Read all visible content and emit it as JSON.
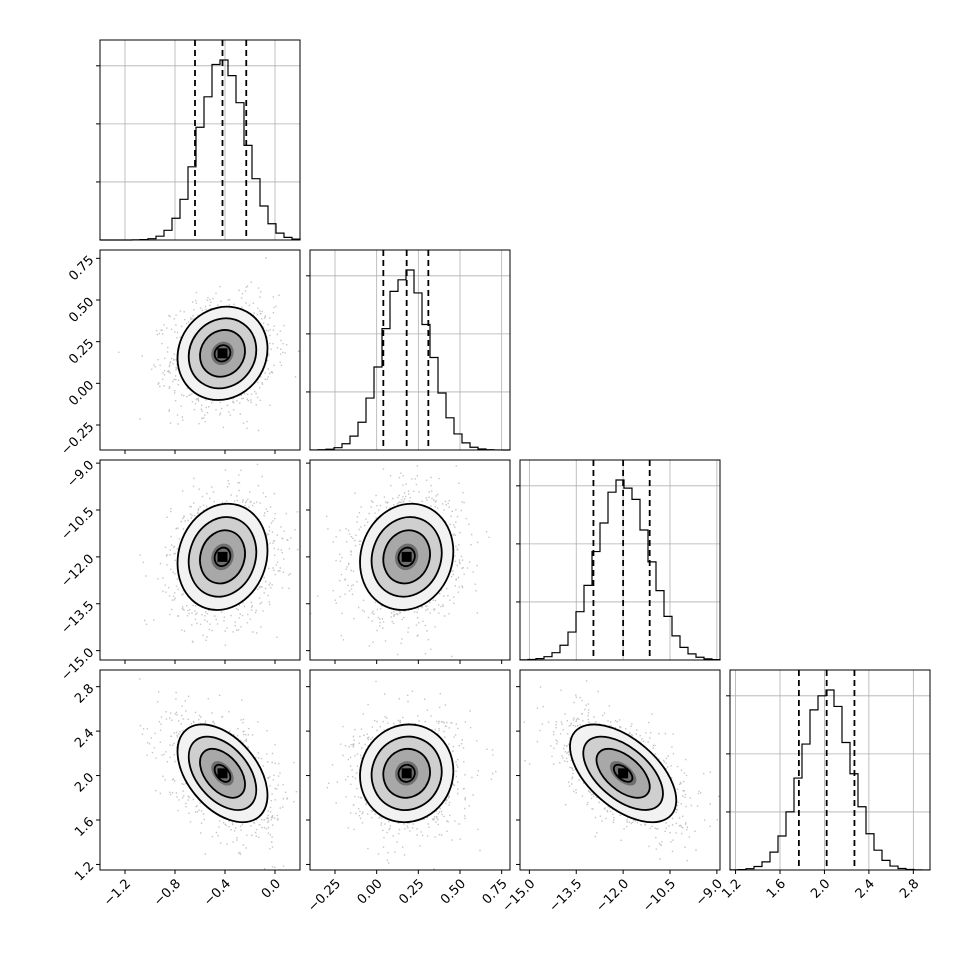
{
  "chart_data": {
    "type": "corner",
    "grid": true,
    "colors": {
      "line": "#000000",
      "grid": "#b0b0b0",
      "points": "#7f7f7f"
    },
    "parameters": [
      {
        "name": "",
        "range": [
          -1.4,
          0.2
        ],
        "ticks": [
          -1.2,
          -0.8,
          -0.4,
          0.0
        ],
        "tick_labels": [
          "−1.2",
          "−0.8",
          "−0.4",
          "0.0"
        ],
        "mean": -0.42,
        "sigma": 0.18,
        "quantiles": [
          -0.64,
          -0.42,
          -0.23
        ]
      },
      {
        "name": "",
        "range": [
          -0.4,
          0.8
        ],
        "ticks": [
          -0.25,
          0.0,
          0.25,
          0.5,
          0.75
        ],
        "tick_labels": [
          "−0.25",
          "0.00",
          "0.25",
          "0.50",
          "0.75"
        ],
        "mean": 0.18,
        "sigma": 0.14,
        "quantiles": [
          0.04,
          0.18,
          0.31
        ]
      },
      {
        "name": "",
        "range": [
          -15.3,
          -8.9
        ],
        "ticks": [
          -15.0,
          -13.5,
          -12.0,
          -10.5,
          -9.0
        ],
        "tick_labels": [
          "−15.0",
          "−13.5",
          "−12.0",
          "−10.5",
          "−9.0"
        ],
        "mean": -12.0,
        "sigma": 0.85,
        "quantiles": [
          -12.95,
          -12.0,
          -11.15
        ]
      },
      {
        "name": "",
        "range": [
          1.15,
          2.95
        ],
        "ticks": [
          1.2,
          1.6,
          2.0,
          2.4,
          2.8
        ],
        "tick_labels": [
          "1.2",
          "1.6",
          "2.0",
          "2.4",
          "2.8"
        ],
        "mean": 2.02,
        "sigma": 0.22,
        "quantiles": [
          1.77,
          2.02,
          2.27
        ]
      }
    ],
    "correlations": [
      {
        "row": 1,
        "col": 0,
        "rho": 0.1
      },
      {
        "row": 2,
        "col": 0,
        "rho": 0.12
      },
      {
        "row": 2,
        "col": 1,
        "rho": 0.1
      },
      {
        "row": 3,
        "col": 0,
        "rho": -0.45
      },
      {
        "row": 3,
        "col": 1,
        "rho": 0.05
      },
      {
        "row": 3,
        "col": 2,
        "rho": -0.55
      }
    ],
    "contour_levels_sigma": [
      0.5,
      1.0,
      1.5,
      2.0
    ]
  }
}
